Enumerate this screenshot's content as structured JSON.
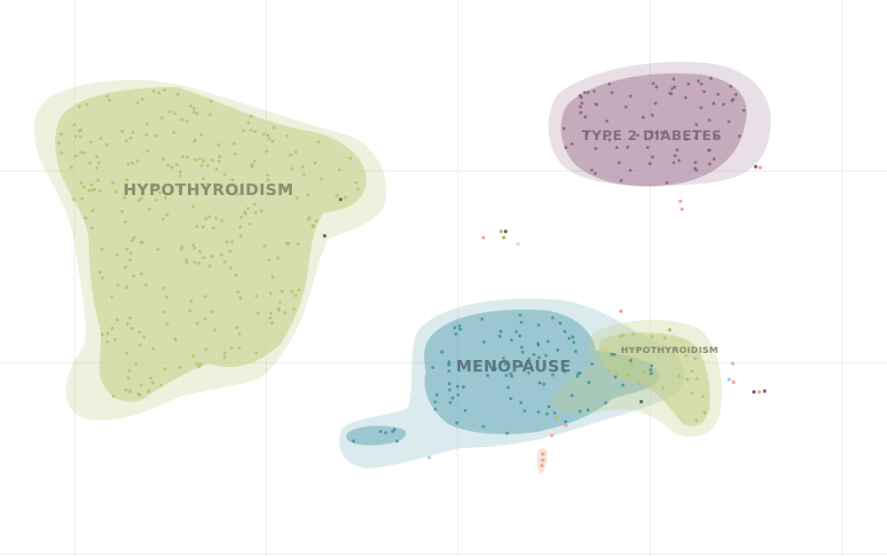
{
  "chart_data": {
    "type": "scatter",
    "title": "",
    "xlabel": "",
    "ylabel": "",
    "grid": true,
    "colors": {
      "hypothyroidism": "#c2cd86",
      "type2_diabetes": "#a8819a",
      "menopause": "#6aaab8",
      "gridline": "#e8e8e8"
    },
    "clusters": [
      {
        "key": "hypothyroidism",
        "label": "HYPOTHYROIDISM",
        "color": "#c2cd86",
        "point_color": "#b3bf6c",
        "approx_points": 280
      },
      {
        "key": "type2_diabetes",
        "label": "TYPE 2 DIABETES",
        "color": "#a8819a",
        "point_color": "#8c5c7c",
        "approx_points": 80
      },
      {
        "key": "menopause",
        "label": "MENOPAUSE",
        "color": "#6aaab8",
        "point_color": "#3f8e9e",
        "approx_points": 90
      },
      {
        "key": "hypothyroidism_secondary",
        "label": "HYPOTHYROIDISM",
        "color": "#c2cd86",
        "point_color": "#b3bf6c",
        "approx_points": 25
      }
    ]
  }
}
